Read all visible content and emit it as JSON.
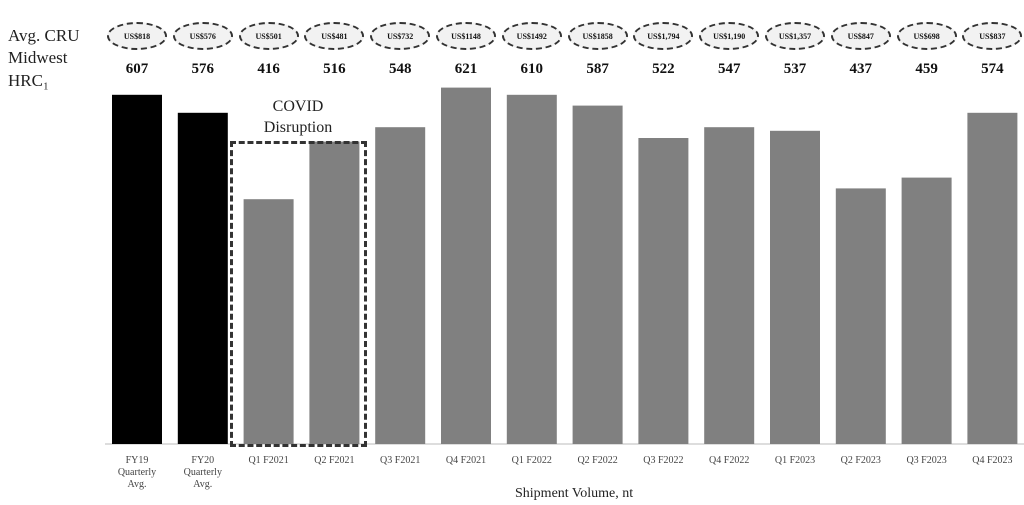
{
  "row_labels": {
    "line1": "Avg. CRU",
    "line2": "Midwest",
    "line3": "HRC₁"
  },
  "annotation": {
    "line1": "COVID",
    "line2": "Disruption"
  },
  "chart_data": {
    "type": "bar",
    "xlabel": "Shipment Volume, nt",
    "ylabel": "",
    "title": "",
    "ylim": [
      0,
      100
    ],
    "categories": [
      [
        "FY19",
        "Quarterly",
        "Avg."
      ],
      [
        "FY20",
        "Quarterly",
        "Avg."
      ],
      [
        "Q1 F2021"
      ],
      [
        "Q2 F2021"
      ],
      [
        "Q3 F2021"
      ],
      [
        "Q4 F2021"
      ],
      [
        "Q1 F2022"
      ],
      [
        "Q2 F2022"
      ],
      [
        "Q3 F2022"
      ],
      [
        "Q4 F2022"
      ],
      [
        "Q1 F2023"
      ],
      [
        "Q2 F2023"
      ],
      [
        "Q3 F2023"
      ],
      [
        "Q4 F2023"
      ]
    ],
    "values": [
      97,
      92,
      68,
      84,
      88,
      99,
      97,
      94,
      85,
      88,
      87,
      71,
      74,
      92
    ],
    "bar_labels": [
      "607",
      "576",
      "416",
      "516",
      "548",
      "621",
      "610",
      "587",
      "522",
      "547",
      "537",
      "437",
      "459",
      "574"
    ],
    "prices": [
      "US$818",
      "US$576",
      "US$501",
      "US$481",
      "US$732",
      "US$1148",
      "US$1492",
      "US$1858",
      "US$1,794",
      "US$1,190",
      "US$1,357",
      "US$847",
      "US$698",
      "US$837"
    ],
    "colors": [
      "#000000",
      "#000000",
      "#808080",
      "#808080",
      "#808080",
      "#808080",
      "#808080",
      "#808080",
      "#808080",
      "#808080",
      "#808080",
      "#808080",
      "#808080",
      "#808080"
    ],
    "grid": false,
    "legend": "none"
  }
}
